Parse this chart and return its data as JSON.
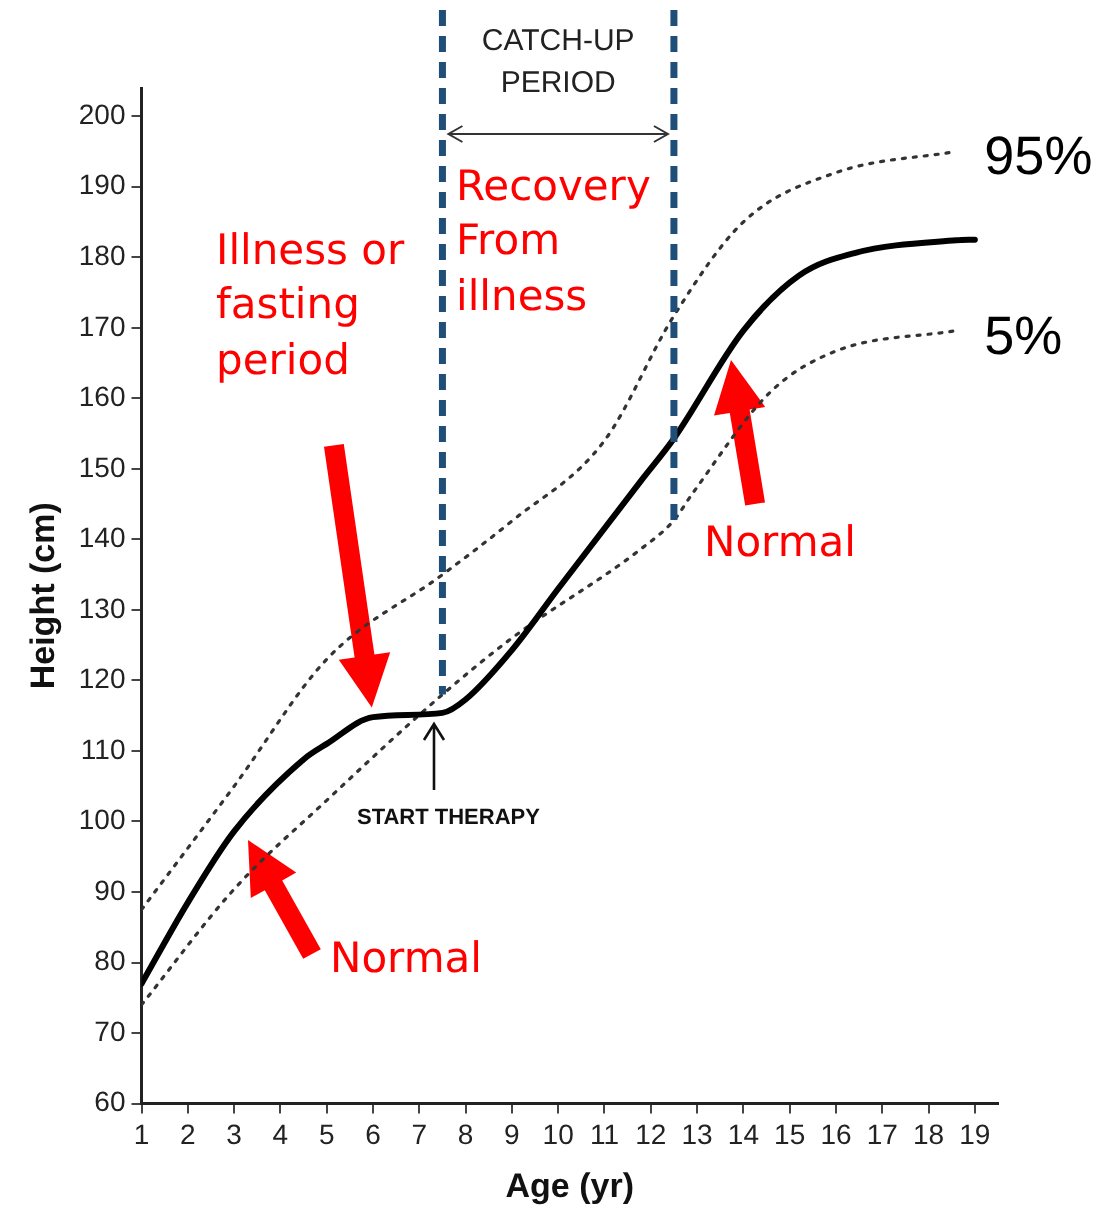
{
  "chart_data": {
    "type": "line",
    "xlabel": "Age (yr)",
    "ylabel": "Height (cm)",
    "xlim": [
      1,
      19.5
    ],
    "xticks": [
      1,
      2,
      3,
      4,
      5,
      6,
      7,
      8,
      9,
      10,
      11,
      12,
      13,
      14,
      15,
      16,
      17,
      18,
      19
    ],
    "ylim": [
      60,
      204
    ],
    "yticks": [
      60,
      70,
      80,
      90,
      100,
      110,
      120,
      130,
      140,
      150,
      160,
      170,
      180,
      190,
      200
    ],
    "grid": false,
    "legend": false,
    "marker": "none",
    "series": [
      {
        "color": "#000000",
        "line_style": "solid",
        "x": [
          1,
          2,
          3,
          4.5,
          5,
          6,
          7.5,
          8,
          9,
          10,
          11.8,
          12.5,
          14,
          15.2,
          16.4,
          18.6,
          19
        ],
        "values": [
          77,
          88.5,
          98.6,
          108.8,
          111,
          114.8,
          115.4,
          117.3,
          124.3,
          133,
          148.4,
          154.3,
          169.6,
          177.4,
          180.6,
          182.4,
          182.5
        ]
      },
      {
        "name": "95%",
        "color": "#333333",
        "line_style": "dotted",
        "x": [
          1,
          3,
          5,
          7.5,
          9,
          11,
          12.5,
          14,
          16,
          18.6
        ],
        "values": [
          87.5,
          105,
          123,
          135,
          142.6,
          154,
          171.7,
          185,
          192,
          195
        ]
      },
      {
        "name": "5%",
        "color": "#333333",
        "line_style": "dotted",
        "x": [
          1,
          3,
          5,
          7.5,
          9,
          11.8,
          12.5,
          12.9,
          14.6,
          16,
          18.6
        ],
        "values": [
          74,
          90.4,
          103,
          118,
          126,
          138.7,
          142.7,
          146.5,
          161,
          166.7,
          169.6
        ]
      }
    ],
    "ref_lines": [
      {
        "axis": "x",
        "value": 7.5,
        "color": "#1f4e79",
        "line_style": "dashed"
      },
      {
        "axis": "x",
        "value": 12.5,
        "color": "#1f4e79",
        "line_style": "dashed"
      }
    ],
    "annotations": [
      "Illness or fasting period",
      "Normal",
      "Normal",
      {
        "text": "START THERAPY",
        "x": 7.5,
        "y": 115.4
      },
      "Recovery From illness",
      "CATCH-UP PERIOD"
    ]
  }
}
